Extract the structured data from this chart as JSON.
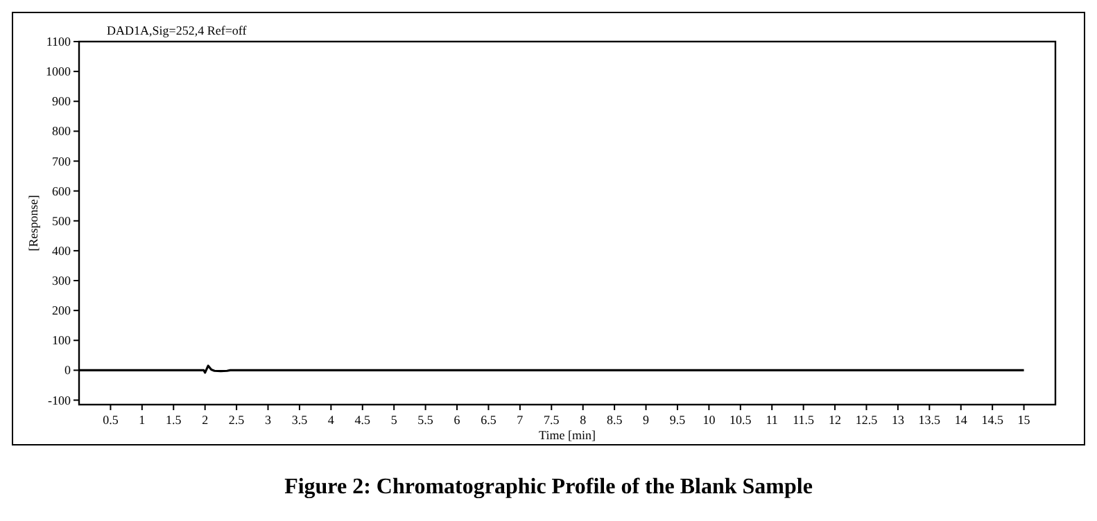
{
  "chart_data": {
    "type": "line",
    "title": "DAD1A,Sig=252,4  Ref=off",
    "xlabel": "Time [min]",
    "ylabel": "[Response]",
    "annotations": [
      "Figure 2: Chromatographic Profile of the Blank Sample"
    ],
    "x": [
      0,
      1.98,
      2.0,
      2.05,
      2.1,
      2.15,
      2.25,
      2.35,
      2.4,
      15
    ],
    "values": [
      0,
      0,
      -8,
      15,
      2,
      -2,
      -3,
      -2,
      0,
      0
    ],
    "color": "#000000",
    "xlim": [
      0,
      15.5
    ],
    "xticks": [
      0.5,
      1,
      1.5,
      2,
      2.5,
      3,
      3.5,
      4,
      4.5,
      5,
      5.5,
      6,
      6.5,
      7,
      7.5,
      8,
      8.5,
      9,
      9.5,
      10,
      10.5,
      11,
      11.5,
      12,
      12.5,
      13,
      13.5,
      14,
      14.5,
      15
    ],
    "ylim": [
      -115,
      1100
    ],
    "yticks": [
      -100,
      0,
      100,
      200,
      300,
      400,
      500,
      600,
      700,
      800,
      900,
      1000,
      1100
    ],
    "marker": "none",
    "line_style": "solid"
  }
}
